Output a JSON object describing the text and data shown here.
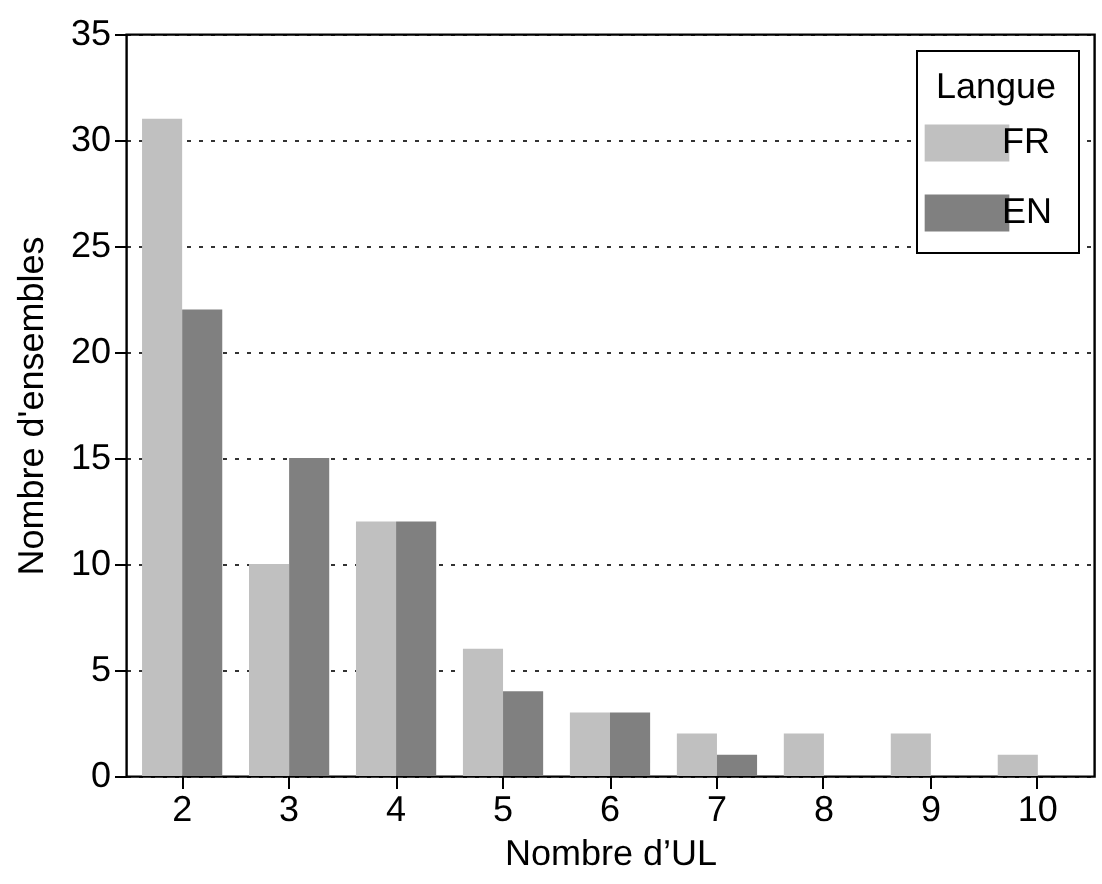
{
  "chart_data": {
    "type": "bar",
    "xlabel": "Nombre d’UL",
    "ylabel": "Nombre d'ensembles",
    "legend_title": "Langue",
    "categories": [
      "2",
      "3",
      "4",
      "5",
      "6",
      "7",
      "8",
      "9",
      "10"
    ],
    "series": [
      {
        "name": "FR",
        "color": "#c0c0c0",
        "values": [
          31,
          10,
          12,
          6,
          3,
          2,
          2,
          2,
          1
        ]
      },
      {
        "name": "EN",
        "color": "#808080",
        "values": [
          22,
          15,
          12,
          4,
          3,
          1,
          0,
          0,
          0
        ]
      }
    ],
    "ylim": [
      0,
      35
    ],
    "yticks": [
      0,
      5,
      10,
      15,
      20,
      25,
      30,
      35
    ],
    "grid": "y",
    "legend": "top right"
  }
}
